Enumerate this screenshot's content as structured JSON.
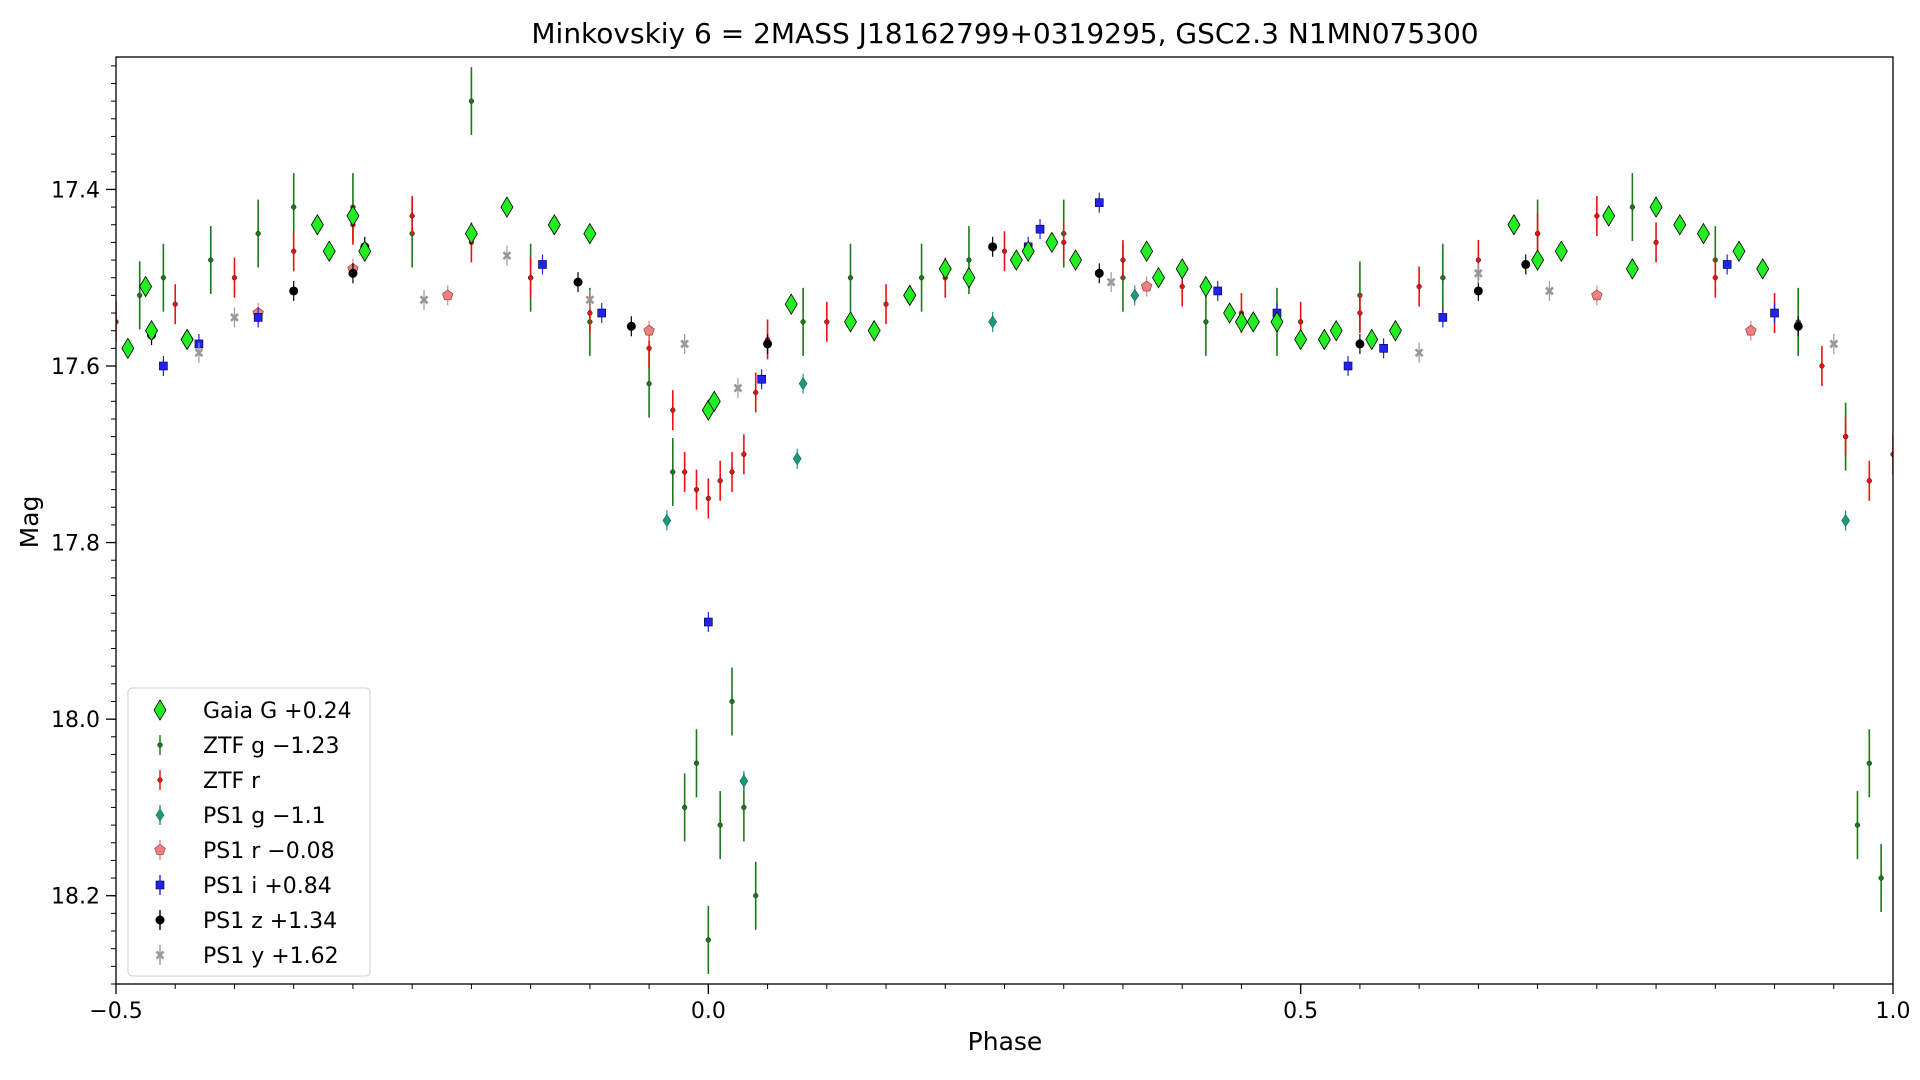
{
  "chart_data": {
    "type": "scatter",
    "title": "Minkovskiy 6 = 2MASS J18162799+0319295, GSC2.3 N1MN075300",
    "xlabel": "Phase",
    "ylabel": "Mag",
    "xlim": [
      -0.5,
      1.0
    ],
    "ylim": [
      18.3,
      17.25
    ],
    "y_inverted": true,
    "x_major_ticks": [
      -0.5,
      0.0,
      0.5,
      1.0
    ],
    "x_tick_labels": [
      "−0.5",
      "0.0",
      "0.5",
      "1.0"
    ],
    "y_major_ticks": [
      17.4,
      17.6,
      17.8,
      18.0,
      18.2
    ],
    "y_tick_labels": [
      "17.4",
      "17.6",
      "17.8",
      "18.0",
      "18.2"
    ],
    "legend_position": "lower-left",
    "series": [
      {
        "name": "Gaia G +0.24",
        "color": "#22ee22",
        "marker": "diamond",
        "x": [
          -0.49,
          -0.475,
          -0.47,
          -0.44,
          -0.44,
          -0.33,
          -0.32,
          -0.3,
          -0.29,
          -0.2,
          -0.17,
          -0.13,
          -0.1,
          0.0,
          0.005,
          0.07,
          0.12,
          0.14,
          0.17,
          0.17,
          0.2,
          0.22,
          0.26,
          0.27,
          0.29,
          0.31,
          0.37,
          0.38,
          0.4,
          0.42,
          0.44,
          0.45,
          0.46,
          0.48,
          0.5,
          0.52,
          0.53,
          0.56,
          0.58,
          0.68,
          0.7,
          0.72,
          0.76,
          0.78,
          0.8,
          0.82,
          0.84,
          0.87,
          0.89
        ],
        "y": [
          17.58,
          17.51,
          17.56,
          17.57,
          17.57,
          17.44,
          17.47,
          17.43,
          17.47,
          17.45,
          17.42,
          17.44,
          17.45,
          17.65,
          17.64,
          17.53,
          17.55,
          17.56,
          17.52,
          17.52,
          17.49,
          17.5,
          17.48,
          17.47,
          17.46,
          17.48,
          17.47,
          17.5,
          17.49,
          17.51,
          17.54,
          17.55,
          17.55,
          17.55,
          17.57,
          17.57,
          17.56,
          17.57,
          17.56,
          17.44,
          17.48,
          17.47,
          17.43,
          17.49,
          17.42,
          17.44,
          17.45,
          17.47,
          17.49
        ]
      },
      {
        "name": "ZTF g −1.23",
        "color": "#1a7a1a",
        "marker": "point-errorbar",
        "x": [
          -0.48,
          -0.46,
          -0.42,
          -0.38,
          -0.35,
          -0.3,
          -0.25,
          -0.2,
          -0.15,
          -0.1,
          -0.05,
          -0.03,
          -0.02,
          -0.01,
          0.0,
          0.01,
          0.02,
          0.03,
          0.04,
          0.08,
          0.12,
          0.18,
          0.22,
          0.3,
          0.35,
          0.42,
          0.48,
          0.55,
          0.62,
          0.7,
          0.78,
          0.85,
          0.92,
          0.96,
          0.97,
          0.98,
          0.99
        ],
        "y": [
          17.52,
          17.5,
          17.48,
          17.45,
          17.42,
          17.42,
          17.45,
          17.3,
          17.5,
          17.55,
          17.62,
          17.72,
          18.1,
          18.05,
          18.25,
          18.12,
          17.98,
          18.1,
          18.2,
          17.55,
          17.5,
          17.5,
          17.48,
          17.45,
          17.5,
          17.55,
          17.55,
          17.52,
          17.5,
          17.45,
          17.42,
          17.48,
          17.55,
          17.68,
          18.12,
          18.05,
          18.18
        ]
      },
      {
        "name": "ZTF r",
        "color": "#ee1111",
        "marker": "point-errorbar",
        "x": [
          -0.5,
          -0.45,
          -0.4,
          -0.35,
          -0.3,
          -0.25,
          -0.2,
          -0.15,
          -0.1,
          -0.05,
          -0.03,
          -0.02,
          -0.01,
          0.0,
          0.01,
          0.02,
          0.03,
          0.04,
          0.05,
          0.1,
          0.15,
          0.2,
          0.25,
          0.3,
          0.35,
          0.4,
          0.45,
          0.5,
          0.55,
          0.6,
          0.65,
          0.7,
          0.75,
          0.8,
          0.85,
          0.9,
          0.94,
          0.96,
          0.98,
          1.0
        ],
        "y": [
          17.55,
          17.53,
          17.5,
          17.47,
          17.44,
          17.43,
          17.46,
          17.5,
          17.54,
          17.58,
          17.65,
          17.72,
          17.74,
          17.75,
          17.73,
          17.72,
          17.7,
          17.63,
          17.57,
          17.55,
          17.53,
          17.5,
          17.47,
          17.46,
          17.48,
          17.51,
          17.54,
          17.55,
          17.54,
          17.51,
          17.48,
          17.45,
          17.43,
          17.46,
          17.5,
          17.54,
          17.6,
          17.68,
          17.73,
          17.7
        ]
      },
      {
        "name": "PS1 g −1.1",
        "color": "#1a9a7a",
        "marker": "thin-diamond",
        "x": [
          -0.035,
          0.03,
          0.075,
          0.08,
          0.24,
          0.36,
          0.96
        ],
        "y": [
          17.775,
          18.07,
          17.705,
          17.62,
          17.55,
          17.52,
          17.775
        ]
      },
      {
        "name": "PS1 r −0.08",
        "color": "#f08080",
        "marker": "pentagon",
        "x": [
          -0.38,
          -0.3,
          -0.22,
          -0.05,
          0.37,
          0.75,
          0.88
        ],
        "y": [
          17.54,
          17.49,
          17.52,
          17.56,
          17.51,
          17.52,
          17.56
        ]
      },
      {
        "name": "PS1 i +0.84",
        "color": "#2222ee",
        "marker": "square",
        "x": [
          -0.46,
          -0.43,
          -0.38,
          -0.14,
          -0.09,
          0.0,
          0.045,
          0.27,
          0.28,
          0.33,
          0.43,
          0.48,
          0.54,
          0.57,
          0.62,
          0.86,
          0.9
        ],
        "y": [
          17.6,
          17.575,
          17.545,
          17.485,
          17.54,
          17.89,
          17.615,
          17.465,
          17.445,
          17.415,
          17.515,
          17.54,
          17.6,
          17.58,
          17.545,
          17.485,
          17.54
        ]
      },
      {
        "name": "PS1 z +1.34",
        "color": "#000000",
        "marker": "circle",
        "x": [
          -0.47,
          -0.35,
          -0.3,
          -0.29,
          -0.11,
          -0.065,
          0.05,
          0.24,
          0.33,
          0.55,
          0.65,
          0.69,
          0.92
        ],
        "y": [
          17.565,
          17.515,
          17.495,
          17.465,
          17.505,
          17.555,
          17.575,
          17.465,
          17.495,
          17.575,
          17.515,
          17.485,
          17.555
        ]
      },
      {
        "name": "PS1 y +1.62",
        "color": "#999999",
        "marker": "x-filled",
        "x": [
          -0.43,
          -0.4,
          -0.24,
          -0.17,
          -0.1,
          -0.02,
          0.025,
          0.34,
          0.6,
          0.65,
          0.71,
          0.95
        ],
        "y": [
          17.585,
          17.545,
          17.525,
          17.475,
          17.525,
          17.575,
          17.625,
          17.505,
          17.585,
          17.495,
          17.515,
          17.575
        ]
      }
    ]
  }
}
